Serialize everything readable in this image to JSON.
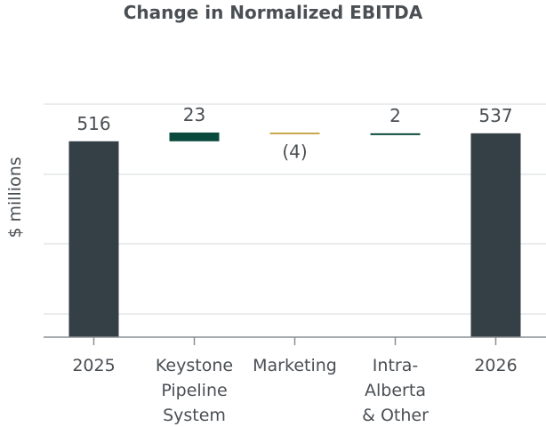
{
  "chart_data": {
    "type": "bar",
    "subtype": "waterfall",
    "title": "Change in Normalized EBITDA",
    "xlabel": "",
    "ylabel": "$ millions",
    "categories": [
      [
        "2025"
      ],
      [
        "Keystone",
        "Pipeline",
        "System"
      ],
      [
        "Marketing"
      ],
      [
        "Intra-",
        "Alberta",
        "& Other"
      ],
      [
        "2026"
      ]
    ],
    "bars": [
      {
        "kind": "total",
        "start": 0,
        "end": 516,
        "label": "516",
        "color": "#353f46"
      },
      {
        "kind": "delta",
        "start": 516,
        "end": 539,
        "label": "23",
        "color": "#0a4a3c"
      },
      {
        "kind": "delta",
        "start": 539,
        "end": 535,
        "label": "(4)",
        "color": "#c9a84b"
      },
      {
        "kind": "delta",
        "start": 535,
        "end": 537,
        "label": "2",
        "color": "#0a4a3c"
      },
      {
        "kind": "total",
        "start": 0,
        "end": 537,
        "label": "537",
        "color": "#353f46"
      }
    ],
    "grid": true,
    "legend": "none"
  }
}
